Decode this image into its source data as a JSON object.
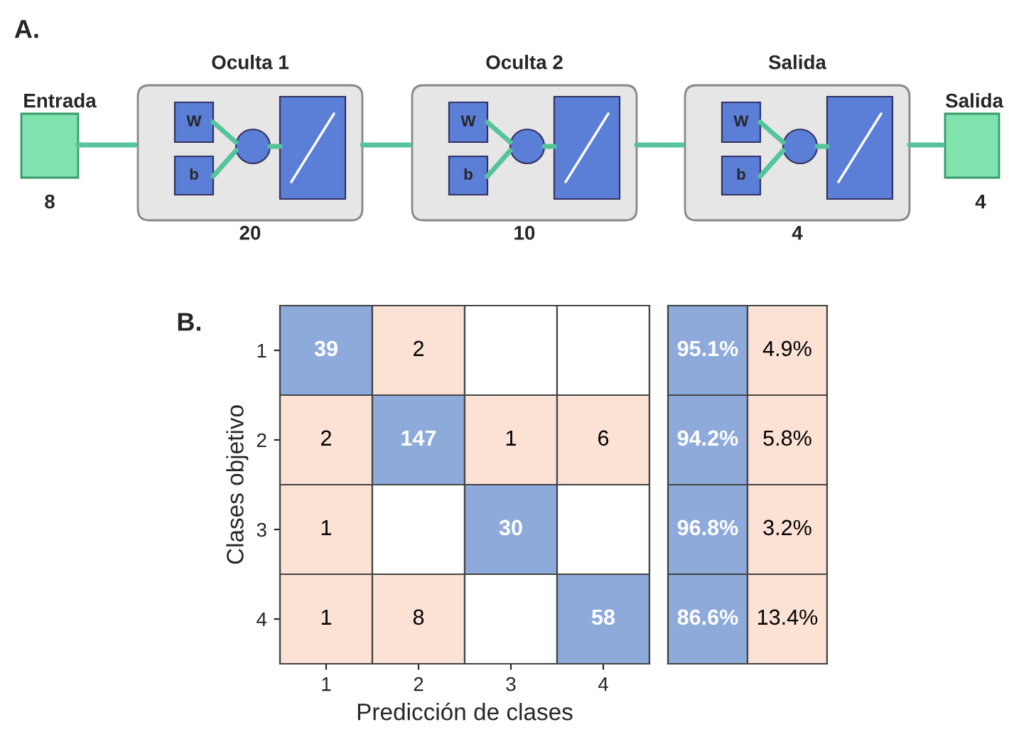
{
  "chart_data": [
    {
      "type": "other",
      "title": "A.",
      "annotations": [
        "Entrada",
        "8",
        "Oculta 1",
        "20",
        "W",
        "b",
        "Oculta 2",
        "10",
        "W",
        "b",
        "Salida",
        "4",
        "W",
        "b",
        "Salida",
        "4"
      ]
    },
    {
      "type": "heatmap",
      "title": "B.",
      "xlabel": "Predicción de clases",
      "ylabel": "Clases objetivo",
      "categories": [
        "1",
        "2",
        "3",
        "4"
      ],
      "y_categories": [
        "1",
        "2",
        "3",
        "4"
      ],
      "data_labels": true,
      "cells": [
        [
          39,
          2,
          null,
          null
        ],
        [
          2,
          147,
          1,
          6
        ],
        [
          1,
          null,
          30,
          null
        ],
        [
          1,
          8,
          null,
          58
        ]
      ]
    },
    {
      "type": "heatmap",
      "categories": [
        null,
        null
      ],
      "y_categories": [
        null,
        null,
        null,
        null
      ],
      "tick_labels": false,
      "cells": [
        [
          95.1,
          4.9
        ],
        [
          94.2,
          5.8
        ],
        [
          96.8,
          3.2
        ],
        [
          86.6,
          13.4
        ]
      ],
      "cell_labels": [
        [
          "95.1%",
          "4.9%"
        ],
        [
          "94.2%",
          "5.8%"
        ],
        [
          "96.8%",
          "3.2%"
        ],
        [
          "86.6%",
          "13.4%"
        ]
      ]
    }
  ]
}
